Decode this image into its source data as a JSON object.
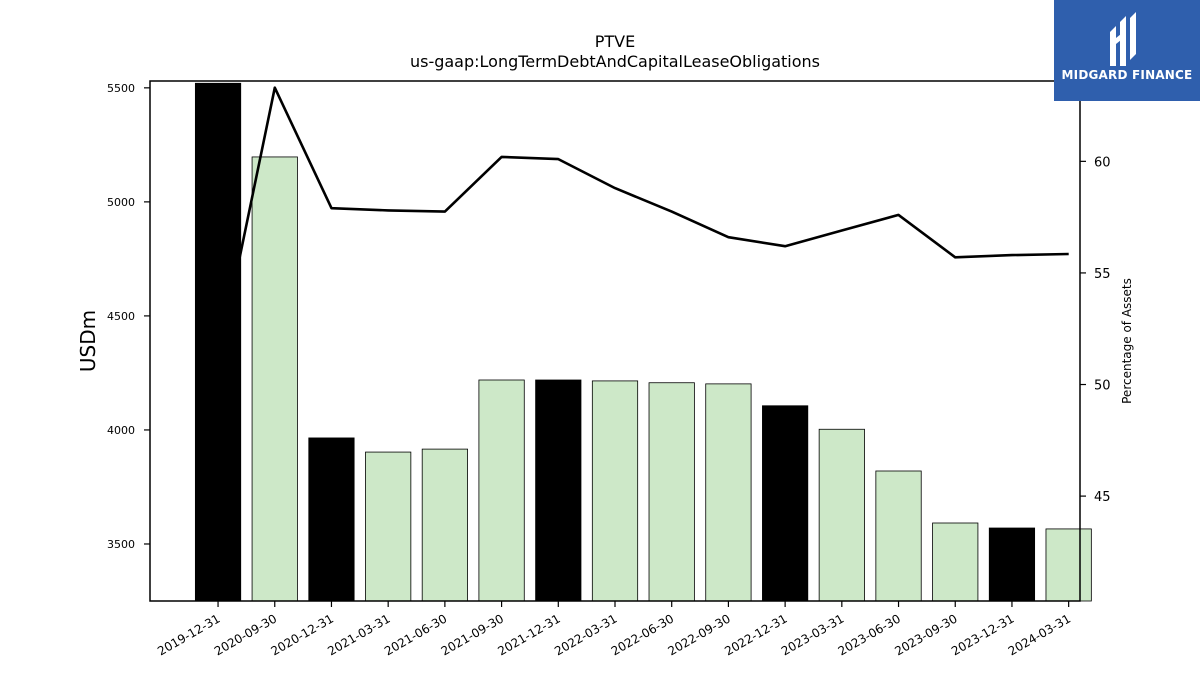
{
  "chart_data": {
    "type": "bar",
    "title": "PTVE",
    "subtitle": "us-gaap:LongTermDebtAndCapitalLeaseObligations",
    "ylabel": "USDm",
    "y2label": "Percentage of Assets",
    "categories": [
      "2019-12-31",
      "2020-09-30",
      "2020-12-31",
      "2021-03-31",
      "2021-06-30",
      "2021-09-30",
      "2021-12-31",
      "2022-03-31",
      "2022-06-30",
      "2022-09-30",
      "2022-12-31",
      "2023-03-31",
      "2023-06-30",
      "2023-09-30",
      "2023-12-31",
      "2024-03-31"
    ],
    "series": [
      {
        "type": "bar",
        "values": [
          5520,
          5197,
          3965,
          3903,
          3916,
          4219,
          4219,
          4215,
          4207,
          4202,
          4106,
          4003,
          3820,
          3592,
          3570,
          3566
        ],
        "year_end_color": "#000000",
        "other_color": "#cde8c8"
      },
      {
        "type": "line",
        "axis": "right",
        "values": [
          51,
          63.3,
          57.9,
          57.8,
          57.75,
          60.2,
          60.1,
          58.8,
          57.75,
          56.6,
          56.2,
          56.9,
          57.6,
          55.7,
          55.8,
          55.85
        ],
        "color": "#000000"
      }
    ],
    "ylim": [
      3250,
      5530
    ],
    "yticks": [
      3500,
      4000,
      4500,
      5000,
      5500
    ],
    "y2lim": [
      40.3,
      63.6
    ],
    "y2ticks": [
      45,
      50,
      55,
      60
    ]
  },
  "logo": {
    "text": "MIDGARD FINANCE",
    "color": "#2f5fad"
  }
}
